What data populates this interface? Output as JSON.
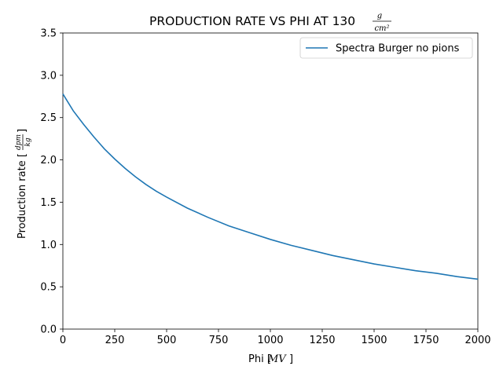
{
  "chart_data": {
    "type": "line",
    "title": "PRODUCTION RATE VS PHI AT 130",
    "title_unit": {
      "numerator": "g",
      "denominator": "cm²"
    },
    "xlabel": "Phi [",
    "xlabel_unit": "MV",
    "xlabel_close": "]",
    "ylabel": "Production rate [",
    "ylabel_unit": {
      "numerator": "dpm",
      "denominator": "kg"
    },
    "ylabel_close": "]",
    "xlim": [
      0,
      2000
    ],
    "ylim": [
      0,
      3.5
    ],
    "xticks": [
      "0",
      "250",
      "500",
      "750",
      "1000",
      "1250",
      "1500",
      "1750",
      "2000"
    ],
    "yticks": [
      "0.0",
      "0.5",
      "1.0",
      "1.5",
      "2.0",
      "2.5",
      "3.0",
      "3.5"
    ],
    "grid": false,
    "legend_position": "top-right",
    "series": [
      {
        "name": "Spectra Burger no pions",
        "color": "#1f77b4",
        "x": [
          0,
          50,
          100,
          150,
          200,
          250,
          300,
          350,
          400,
          450,
          500,
          600,
          700,
          800,
          900,
          1000,
          1100,
          1200,
          1300,
          1400,
          1500,
          1600,
          1700,
          1800,
          1900,
          2000
        ],
        "y": [
          2.78,
          2.58,
          2.42,
          2.27,
          2.13,
          2.01,
          1.9,
          1.8,
          1.71,
          1.63,
          1.56,
          1.43,
          1.32,
          1.22,
          1.14,
          1.06,
          0.99,
          0.93,
          0.87,
          0.82,
          0.77,
          0.73,
          0.69,
          0.66,
          0.62,
          0.59
        ]
      }
    ]
  }
}
